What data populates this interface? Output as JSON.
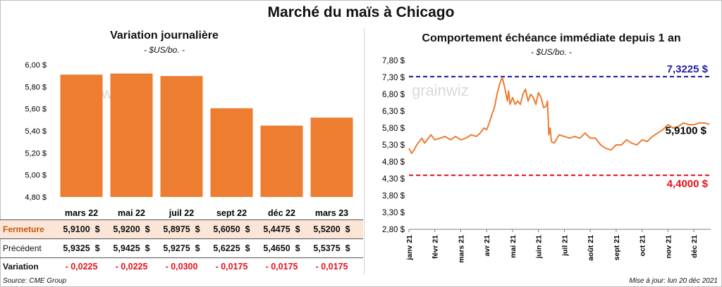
{
  "title": "Marché du maïs à Chicago",
  "left_panel": {
    "title": "Variation  journalière",
    "unit": "- $US/bo. -"
  },
  "right_panel": {
    "title": "Comportement  échéance immédiate depuis 1 an",
    "unit": "- $US/bo. -"
  },
  "watermark": "grainwiz",
  "table": {
    "rows": [
      {
        "label": "Fermeture",
        "values": [
          "5,9100  $",
          "5,9200  $",
          "5,8975  $",
          "5,6050  $",
          "5,4475  $",
          "5,5200  $"
        ]
      },
      {
        "label": "Précédent",
        "values": [
          "5,9325  $",
          "5,9425  $",
          "5,9275  $",
          "5,6225  $",
          "5,4650  $",
          "5,5375  $"
        ]
      },
      {
        "label": "Variation",
        "values": [
          "- 0,0225",
          "- 0,0225",
          "- 0,0300",
          "- 0,0175",
          "- 0,0175",
          "- 0,0175"
        ]
      }
    ]
  },
  "footer": {
    "source": "Source: CME Group",
    "updated": "Mise à jour: lun 20 déc 2021"
  },
  "colors": {
    "bar": "#ED7D31",
    "line": "#ED7D31",
    "high_line": "#1F1FA8",
    "low_line": "#E8101A",
    "fermeture_bg": "#FBE5D6",
    "negative": "#E8101A"
  },
  "chart_data": [
    {
      "type": "bar",
      "categories": [
        "mars 22",
        "mai 22",
        "juil 22",
        "sept 22",
        "déc 22",
        "mars 23"
      ],
      "values": [
        5.91,
        5.92,
        5.8975,
        5.605,
        5.4475,
        5.52
      ],
      "ylim": [
        4.8,
        6.0
      ],
      "yticks": [
        "4,80 $",
        "5,00 $",
        "5,20 $",
        "5,40 $",
        "5,60 $",
        "5,80 $",
        "6,00 $"
      ],
      "ytick_values": [
        4.8,
        5.0,
        5.2,
        5.4,
        5.6,
        5.8,
        6.0
      ],
      "grid": false
    },
    {
      "type": "line",
      "ylim": [
        2.8,
        7.8
      ],
      "yticks": [
        "2,80 $",
        "3,30 $",
        "3,80 $",
        "4,30 $",
        "4,80 $",
        "5,30 $",
        "5,80 $",
        "6,30 $",
        "6,80 $",
        "7,30 $",
        "7,80 $"
      ],
      "ytick_values": [
        2.8,
        3.3,
        3.8,
        4.3,
        4.8,
        5.3,
        5.8,
        6.3,
        6.8,
        7.3,
        7.8
      ],
      "xticks": [
        "janv 21",
        "févr 21",
        "mars 21",
        "avr 21",
        "mai 21",
        "juin 21",
        "juil 21",
        "août 21",
        "sept 21",
        "oct 21",
        "nov 21",
        "déc 21"
      ],
      "x_range": [
        0,
        11.65
      ],
      "x": [
        0,
        0.1,
        0.2,
        0.3,
        0.4,
        0.5,
        0.6,
        0.7,
        0.85,
        1.0,
        1.2,
        1.4,
        1.6,
        1.8,
        2.0,
        2.2,
        2.4,
        2.6,
        2.75,
        2.9,
        3.0,
        3.1,
        3.2,
        3.3,
        3.4,
        3.5,
        3.6,
        3.7,
        3.8,
        3.85,
        3.9,
        4.0,
        4.1,
        4.2,
        4.3,
        4.4,
        4.5,
        4.6,
        4.7,
        4.8,
        4.9,
        5.0,
        5.1,
        5.2,
        5.3,
        5.35,
        5.4,
        5.45,
        5.5,
        5.6,
        5.8,
        6.0,
        6.2,
        6.4,
        6.6,
        6.8,
        7.0,
        7.2,
        7.4,
        7.6,
        7.8,
        8.0,
        8.2,
        8.4,
        8.6,
        8.8,
        9.0,
        9.2,
        9.4,
        9.6,
        9.8,
        10.0,
        10.2,
        10.4,
        10.6,
        10.8,
        11.0,
        11.2,
        11.4,
        11.6
      ],
      "values": [
        5.2,
        5.05,
        5.15,
        5.3,
        5.4,
        5.5,
        5.35,
        5.45,
        5.6,
        5.45,
        5.5,
        5.55,
        5.45,
        5.55,
        5.45,
        5.5,
        5.6,
        5.55,
        5.65,
        5.8,
        5.75,
        5.95,
        6.2,
        6.4,
        6.8,
        7.1,
        7.3,
        7.0,
        6.6,
        6.9,
        6.5,
        6.7,
        6.5,
        6.6,
        6.5,
        6.8,
        6.95,
        6.6,
        6.8,
        6.7,
        6.5,
        6.85,
        6.7,
        6.4,
        6.45,
        6.6,
        5.6,
        5.8,
        5.4,
        5.35,
        5.6,
        5.55,
        5.5,
        5.55,
        5.5,
        5.65,
        5.5,
        5.5,
        5.3,
        5.2,
        5.15,
        5.3,
        5.3,
        5.45,
        5.35,
        5.3,
        5.45,
        5.4,
        5.55,
        5.65,
        5.75,
        5.9,
        5.8,
        5.85,
        5.95,
        5.9,
        5.9,
        5.95,
        5.95,
        5.91
      ],
      "reference_lines": [
        {
          "value": 7.3225,
          "label": "7,3225 $"
        },
        {
          "value": 4.4,
          "label": "4,4000 $"
        }
      ],
      "last_label": "5,9100 $",
      "grid": false
    }
  ]
}
